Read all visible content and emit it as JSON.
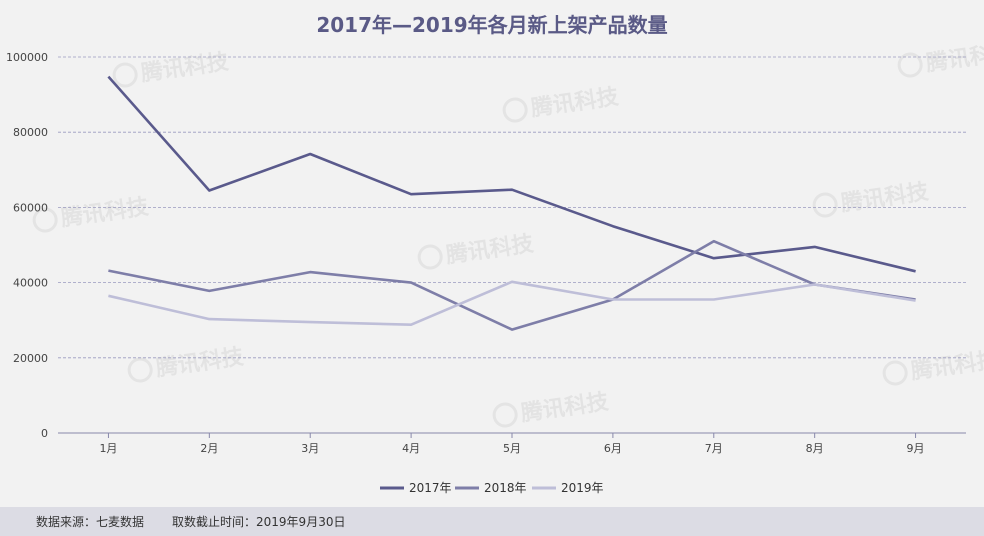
{
  "chart_data": {
    "type": "line",
    "title": "2017年—2019年各月新上架产品数量",
    "categories": [
      "1月",
      "2月",
      "3月",
      "4月",
      "5月",
      "6月",
      "7月",
      "8月",
      "9月"
    ],
    "ylim": [
      0,
      100000
    ],
    "yticks": [
      "0",
      "20000",
      "40000",
      "60000",
      "80000",
      "100000"
    ],
    "grid": true,
    "legend_position": "bottom-center",
    "series": [
      {
        "name": "2017年",
        "color": "#5a5a8c",
        "values": [
          94800,
          64500,
          74200,
          63500,
          64700,
          55000,
          46500,
          49500,
          43000
        ]
      },
      {
        "name": "2018年",
        "color": "#7e7ea8",
        "values": [
          43200,
          37800,
          42800,
          40000,
          27500,
          35500,
          51000,
          39500,
          35500
        ]
      },
      {
        "name": "2019年",
        "color": "#bebed8",
        "values": [
          36500,
          30300,
          29500,
          28800,
          40200,
          35500,
          35500,
          39500,
          35200
        ]
      }
    ]
  },
  "watermark": "腾讯科技",
  "footer": {
    "source": "数据来源：七麦数据",
    "cutoff": "取数截止时间：2019年9月30日"
  }
}
